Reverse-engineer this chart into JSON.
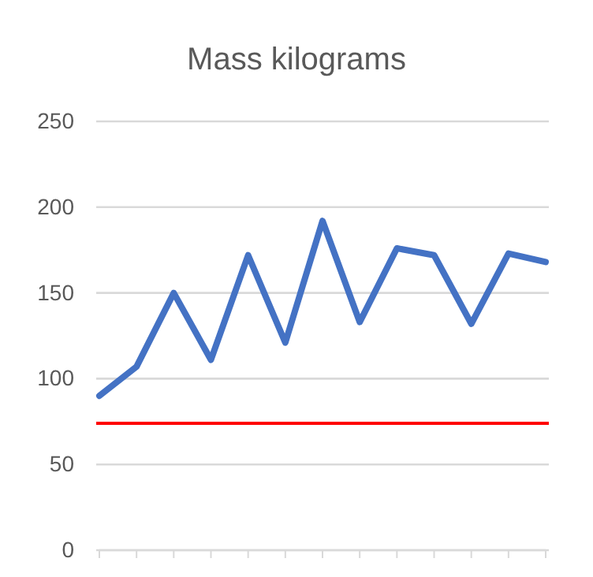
{
  "chart_data": {
    "type": "line",
    "title": "Mass kilograms",
    "categories": [
      null,
      null,
      null,
      null,
      null,
      null,
      null,
      null,
      null,
      null,
      null,
      null,
      null
    ],
    "series": [
      {
        "color": "#4472c4",
        "values": [
          90,
          107,
          150,
          111,
          172,
          121,
          192,
          133,
          176,
          172,
          132,
          173,
          168
        ]
      }
    ],
    "ylim": [
      0,
      250
    ],
    "yticks": [
      0,
      50,
      100,
      150,
      200,
      250
    ],
    "grid": "y",
    "tick_labels": "y",
    "marker": "none",
    "line_style": "solid",
    "ref_lines": [
      {
        "axis": "y",
        "value": 74,
        "color": "#ff0000"
      }
    ]
  }
}
